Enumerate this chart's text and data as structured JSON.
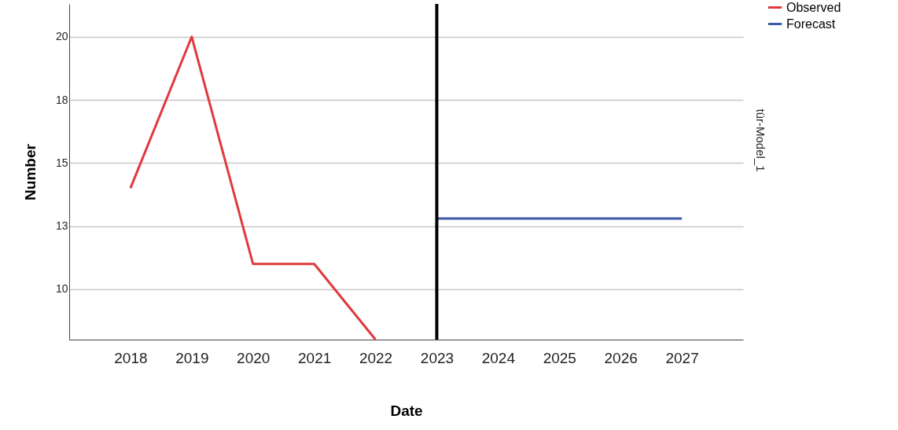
{
  "chart_data": {
    "type": "line",
    "xlabel": "Date",
    "ylabel": "Number",
    "categories": [
      "2018",
      "2019",
      "2020",
      "2021",
      "2022",
      "2023",
      "2024",
      "2025",
      "2026",
      "2027"
    ],
    "series": [
      {
        "name": "Observed",
        "color": "#e0393e",
        "values": [
          14,
          20,
          11,
          11,
          8,
          null,
          null,
          null,
          null,
          null
        ]
      },
      {
        "name": "Forecast",
        "color": "#3d5ba9",
        "values": [
          null,
          null,
          null,
          null,
          null,
          12.8,
          12.8,
          12.8,
          12.8,
          12.8
        ]
      }
    ],
    "ylim": [
      8,
      21.3
    ],
    "yticks": [
      10,
      {
        "value": 12.5,
        "label": "13"
      },
      15,
      {
        "value": 17.5,
        "label": "18"
      },
      20
    ],
    "ref_lines": [
      {
        "axis": "x",
        "value": "2023",
        "color": "#000000"
      }
    ],
    "annotations": [
      "tür-Model_1"
    ],
    "grid": "y",
    "legend": "top right",
    "marker": "none",
    "line_style": "solid"
  }
}
